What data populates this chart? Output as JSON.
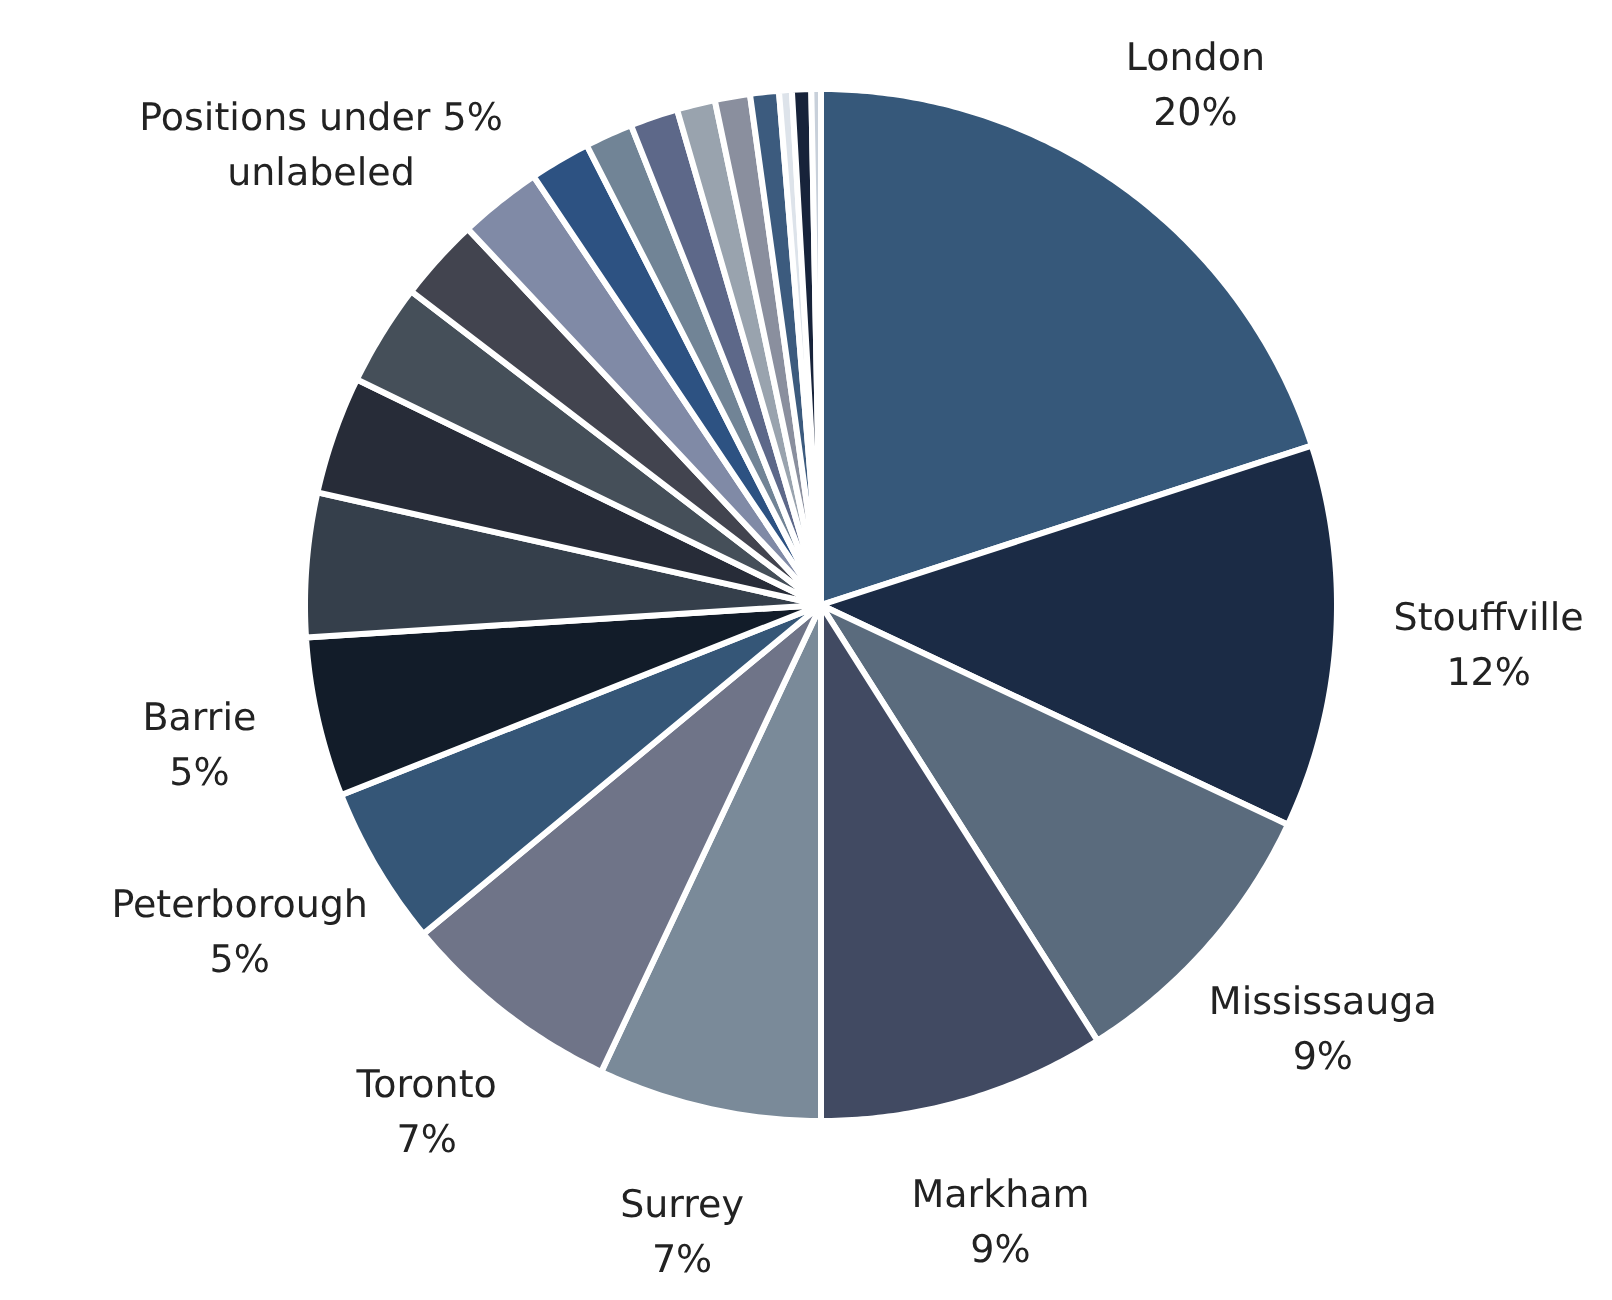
{
  "chart_data": {
    "type": "pie",
    "categories": [
      "London",
      "Stouffville",
      "Mississauga",
      "Markham",
      "Surrey",
      "Toronto",
      "Peterborough",
      "Barrie",
      null,
      null,
      null,
      null,
      null,
      null,
      null,
      null,
      null,
      null,
      null,
      null,
      null,
      null
    ],
    "values": [
      20,
      12,
      9,
      9,
      7,
      7,
      5,
      5,
      4.5,
      3.7,
      3.2,
      2.6,
      2.6,
      1.9,
      1.5,
      1.5,
      1.2,
      1.1,
      0.9,
      0.4,
      0.6,
      0.3
    ],
    "value_labels": [
      "20%",
      "12%",
      "9%",
      "9%",
      "7%",
      "7%",
      "5%",
      "5%",
      null,
      null,
      null,
      null,
      null,
      null,
      null,
      null,
      null,
      null,
      null,
      null,
      null,
      null
    ],
    "colors": [
      "#36587a",
      "#1b2b45",
      "#5a6b7d",
      "#414a62",
      "#7a8a99",
      "#6f7488",
      "#355677",
      "#121c29",
      "#353f4b",
      "#272c38",
      "#454f59",
      "#42444f",
      "#808aa6",
      "#2d5282",
      "#718496",
      "#5d6889",
      "#99a3ae",
      "#8a8f9e",
      "#3c5b7e",
      "#dde3ea",
      "#17233a",
      "#c8d0da"
    ],
    "annotations": [
      "Positions under 5%\nunlabeled"
    ]
  }
}
